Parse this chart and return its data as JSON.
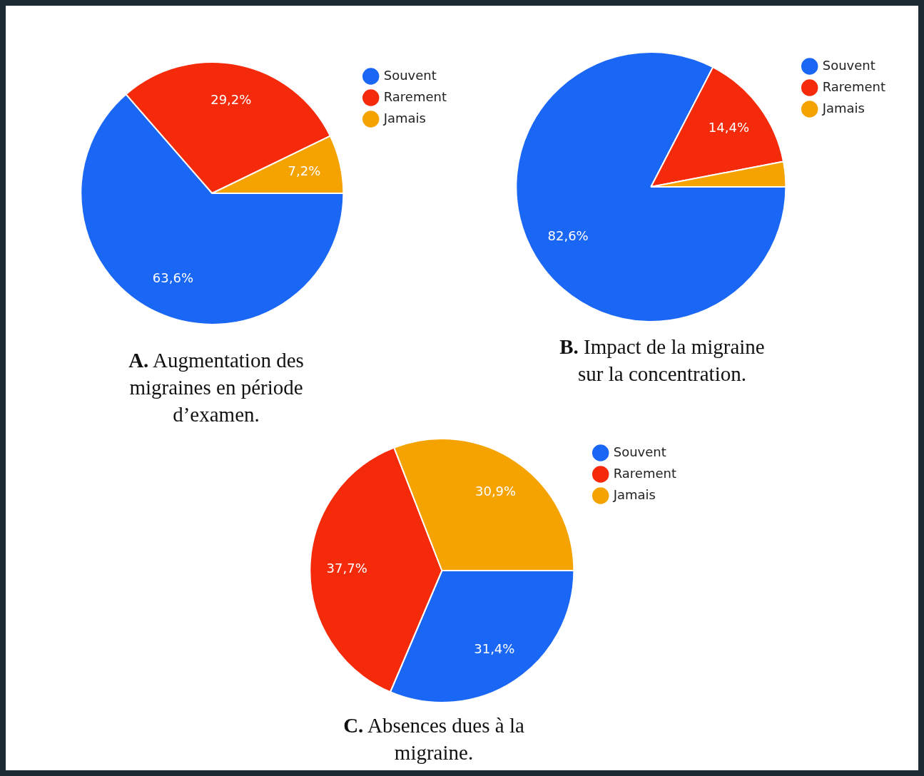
{
  "chart_data": [
    {
      "type": "pie",
      "title": "A. Augmentation des migraines en période d’examen.",
      "categories": [
        "Souvent",
        "Rarement",
        "Jamais"
      ],
      "values": [
        63.6,
        29.2,
        7.2
      ],
      "colors": [
        "#1a66f5",
        "#f42a0a",
        "#f5a300"
      ],
      "value_labels": [
        "63,6%",
        "29,2%",
        "7,2%"
      ],
      "legend": "top right"
    },
    {
      "type": "pie",
      "title": "B. Impact de la migraine sur la concentration.",
      "categories": [
        "Souvent",
        "Rarement",
        "Jamais"
      ],
      "values": [
        82.6,
        14.4,
        3.0
      ],
      "colors": [
        "#1a66f5",
        "#f42a0a",
        "#f5a300"
      ],
      "value_labels": [
        "82,6%",
        "14,4%",
        null
      ],
      "legend": "top right"
    },
    {
      "type": "pie",
      "title": "C. Absences dues à la migraine.",
      "categories": [
        "Souvent",
        "Rarement",
        "Jamais"
      ],
      "values": [
        31.4,
        37.7,
        30.9
      ],
      "colors": [
        "#1a66f5",
        "#f42a0a",
        "#f5a300"
      ],
      "value_labels": [
        "31,4%",
        "37,7%",
        "30,9%"
      ],
      "legend": "top right"
    }
  ]
}
